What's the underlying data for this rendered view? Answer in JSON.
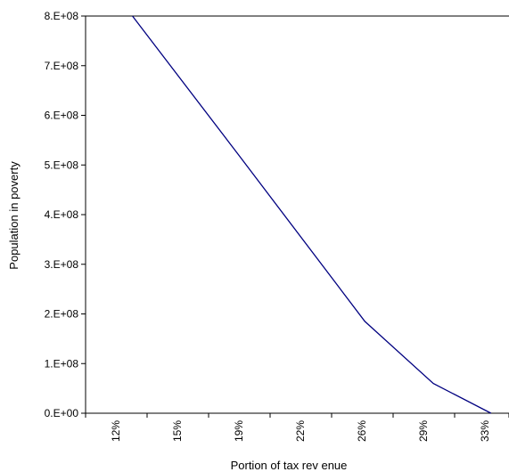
{
  "chart_data": {
    "type": "line",
    "title": "",
    "xlabel": "Portion of tax  rev enue",
    "ylabel": "Population in poverty",
    "x_tick_labels": [
      "12%",
      "15%",
      "19%",
      "22%",
      "26%",
      "29%",
      "33%"
    ],
    "y_tick_labels": [
      "0.E+00",
      "1.E+08",
      "2.E+08",
      "3.E+08",
      "4.E+08",
      "5.E+08",
      "6.E+08",
      "7.E+08",
      "8.E+08"
    ],
    "xlim": [
      0.105,
      0.34
    ],
    "ylim": [
      0,
      800000000
    ],
    "grid": false,
    "series": [
      {
        "color": "#000080",
        "x": [
          0.131,
          0.19,
          0.26,
          0.298,
          0.33
        ],
        "y": [
          800000000,
          520000000,
          185000000,
          60000000,
          0
        ]
      }
    ]
  }
}
